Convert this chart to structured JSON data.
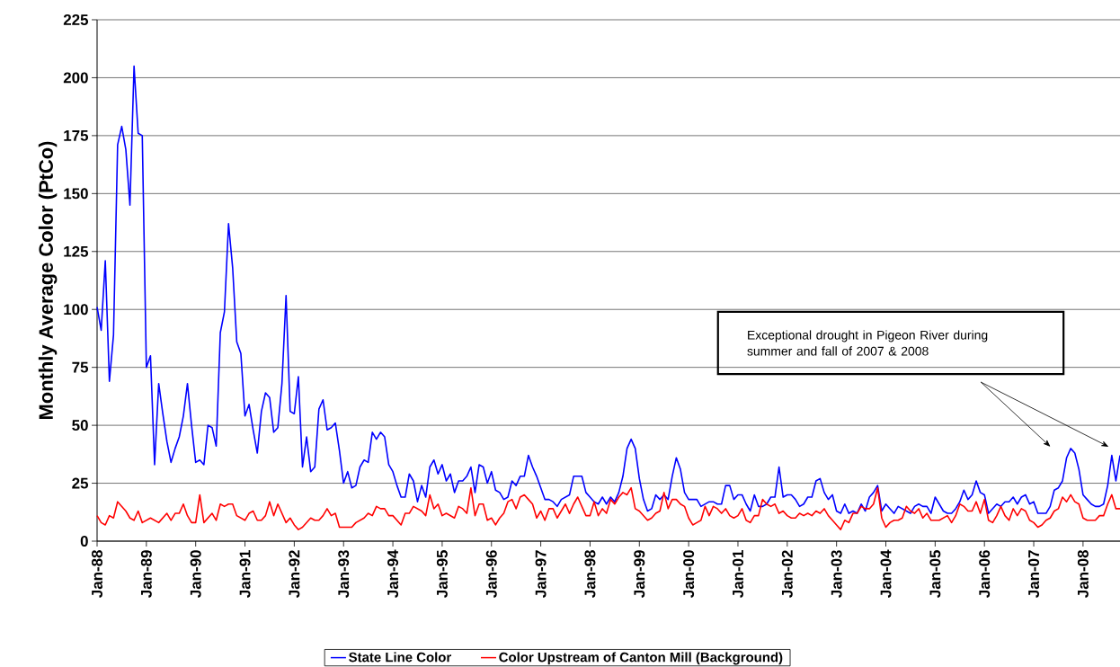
{
  "chart_data": {
    "type": "line",
    "ylabel": "Monthly Average Color (PtCo)",
    "x": [
      "1988-01",
      "1988-02",
      "1988-03",
      "1988-04",
      "1988-05",
      "1988-06",
      "1988-07",
      "1988-08",
      "1988-09",
      "1988-10",
      "1988-11",
      "1988-12",
      "1989-01",
      "1989-02",
      "1989-03",
      "1989-04",
      "1989-05",
      "1989-06",
      "1989-07",
      "1989-08",
      "1989-09",
      "1989-10",
      "1989-11",
      "1989-12",
      "1990-01",
      "1990-02",
      "1990-03",
      "1990-04",
      "1990-05",
      "1990-06",
      "1990-07",
      "1990-08",
      "1990-09",
      "1990-10",
      "1990-11",
      "1990-12",
      "1991-01",
      "1991-02",
      "1991-03",
      "1991-04",
      "1991-05",
      "1991-06",
      "1991-07",
      "1991-08",
      "1991-09",
      "1991-10",
      "1991-11",
      "1991-12",
      "1992-01",
      "1992-02",
      "1992-03",
      "1992-04",
      "1992-05",
      "1992-06",
      "1992-07",
      "1992-08",
      "1992-09",
      "1992-10",
      "1992-11",
      "1992-12",
      "1993-01",
      "1993-02",
      "1993-03",
      "1993-04",
      "1993-05",
      "1993-06",
      "1993-07",
      "1993-08",
      "1993-09",
      "1993-10",
      "1993-11",
      "1993-12",
      "1994-01",
      "1994-02",
      "1994-03",
      "1994-04",
      "1994-05",
      "1994-06",
      "1994-07",
      "1994-08",
      "1994-09",
      "1994-10",
      "1994-11",
      "1994-12",
      "1995-01",
      "1995-02",
      "1995-03",
      "1995-04",
      "1995-05",
      "1995-06",
      "1995-07",
      "1995-08",
      "1995-09",
      "1995-10",
      "1995-11",
      "1995-12",
      "1996-01",
      "1996-02",
      "1996-03",
      "1996-04",
      "1996-05",
      "1996-06",
      "1996-07",
      "1996-08",
      "1996-09",
      "1996-10",
      "1996-11",
      "1996-12",
      "1997-01",
      "1997-02",
      "1997-03",
      "1997-04",
      "1997-05",
      "1997-06",
      "1997-07",
      "1997-08",
      "1997-09",
      "1997-10",
      "1997-11",
      "1997-12",
      "1998-01",
      "1998-02",
      "1998-03",
      "1998-04",
      "1998-05",
      "1998-06",
      "1998-07",
      "1998-08",
      "1998-09",
      "1998-10",
      "1998-11",
      "1998-12",
      "1999-01",
      "1999-02",
      "1999-03",
      "1999-04",
      "1999-05",
      "1999-06",
      "1999-07",
      "1999-08",
      "1999-09",
      "1999-10",
      "1999-11",
      "1999-12",
      "2000-01",
      "2000-02",
      "2000-03",
      "2000-04",
      "2000-05",
      "2000-06",
      "2000-07",
      "2000-08",
      "2000-09",
      "2000-10",
      "2000-11",
      "2000-12",
      "2001-01",
      "2001-02",
      "2001-03",
      "2001-04",
      "2001-05",
      "2001-06",
      "2001-07",
      "2001-08",
      "2001-09",
      "2001-10",
      "2001-11",
      "2001-12",
      "2002-01",
      "2002-02",
      "2002-03",
      "2002-04",
      "2002-05",
      "2002-06",
      "2002-07",
      "2002-08",
      "2002-09",
      "2002-10",
      "2002-11",
      "2002-12",
      "2003-01",
      "2003-02",
      "2003-03",
      "2003-04",
      "2003-05",
      "2003-06",
      "2003-07",
      "2003-08",
      "2003-09",
      "2003-10",
      "2003-11",
      "2003-12",
      "2004-01",
      "2004-02",
      "2004-03",
      "2004-04",
      "2004-05",
      "2004-06",
      "2004-07",
      "2004-08",
      "2004-09",
      "2004-10",
      "2004-11",
      "2004-12",
      "2005-01",
      "2005-02",
      "2005-03",
      "2005-04",
      "2005-05",
      "2005-06",
      "2005-07",
      "2005-08",
      "2005-09",
      "2005-10",
      "2005-11",
      "2005-12",
      "2006-01",
      "2006-02",
      "2006-03",
      "2006-04",
      "2006-05",
      "2006-06",
      "2006-07",
      "2006-08",
      "2006-09",
      "2006-10",
      "2006-11",
      "2006-12",
      "2007-01",
      "2007-02",
      "2007-03",
      "2007-04",
      "2007-05",
      "2007-06",
      "2007-07",
      "2007-08",
      "2007-09",
      "2007-10",
      "2007-11",
      "2007-12",
      "2008-01",
      "2008-02",
      "2008-03",
      "2008-04",
      "2008-05",
      "2008-06",
      "2008-07",
      "2008-08",
      "2008-09",
      "2008-10"
    ],
    "series": [
      {
        "name": "State Line Color",
        "color": "#0000ff",
        "values": [
          101,
          91,
          121,
          69,
          89,
          171,
          179,
          169,
          145,
          205,
          176,
          175,
          75,
          80,
          33,
          68,
          55,
          43,
          34,
          40,
          45,
          54,
          68,
          50,
          34,
          35,
          33,
          50,
          49,
          41,
          90,
          99,
          137,
          118,
          86,
          81,
          54,
          59,
          48,
          38,
          56,
          64,
          62,
          47,
          49,
          68,
          106,
          56,
          55,
          71,
          32,
          45,
          30,
          32,
          57,
          61,
          48,
          49,
          51,
          39,
          25,
          30,
          23,
          24,
          32,
          35,
          34,
          47,
          44,
          47,
          45,
          33,
          30,
          24,
          19,
          19,
          29,
          26,
          17,
          24,
          19,
          32,
          35,
          29,
          33,
          26,
          29,
          21,
          26,
          26,
          28,
          32,
          21,
          33,
          32,
          25,
          30,
          22,
          21,
          18,
          19,
          26,
          24,
          28,
          28,
          37,
          32,
          28,
          23,
          18,
          18,
          17,
          15,
          18,
          19,
          20,
          28,
          28,
          28,
          21,
          19,
          17,
          16,
          19,
          16,
          19,
          17,
          21,
          28,
          40,
          44,
          40,
          27,
          18,
          13,
          14,
          20,
          18,
          20,
          18,
          28,
          36,
          31,
          21,
          18,
          18,
          18,
          15,
          16,
          17,
          17,
          16,
          16,
          24,
          24,
          18,
          20,
          20,
          16,
          13,
          20,
          15,
          15,
          16,
          19,
          19,
          32,
          19,
          20,
          20,
          18,
          15,
          16,
          19,
          19,
          26,
          27,
          21,
          18,
          20,
          13,
          12,
          16,
          12,
          13,
          12,
          16,
          13,
          19,
          21,
          24,
          13,
          16,
          14,
          12,
          15,
          14,
          13,
          12,
          15,
          16,
          15,
          15,
          12,
          19,
          16,
          13,
          12,
          12,
          14,
          17,
          22,
          18,
          20,
          26,
          21,
          20,
          12,
          14,
          16,
          15,
          17,
          17,
          19,
          16,
          19,
          20,
          16,
          17,
          12,
          12,
          12,
          15,
          22,
          23,
          26,
          36,
          40,
          38,
          31,
          20,
          18,
          16,
          15,
          15,
          16,
          24,
          37,
          26,
          37
        ]
      },
      {
        "name": "Color Upstream of Canton Mill (Background)",
        "color": "#ff0000",
        "values": [
          11,
          8,
          7,
          11,
          10,
          17,
          15,
          13,
          10,
          9,
          13,
          8,
          9,
          10,
          9,
          8,
          10,
          12,
          9,
          12,
          12,
          16,
          11,
          8,
          8,
          20,
          8,
          10,
          12,
          9,
          16,
          15,
          16,
          16,
          11,
          10,
          9,
          12,
          13,
          9,
          9,
          11,
          17,
          11,
          16,
          12,
          8,
          10,
          7,
          5,
          6,
          8,
          10,
          9,
          9,
          11,
          14,
          11,
          12,
          6,
          6,
          6,
          6,
          8,
          9,
          10,
          12,
          11,
          15,
          14,
          14,
          11,
          11,
          9,
          7,
          12,
          12,
          15,
          14,
          13,
          11,
          20,
          14,
          16,
          11,
          12,
          11,
          10,
          15,
          14,
          12,
          23,
          11,
          16,
          16,
          9,
          10,
          7,
          10,
          12,
          17,
          18,
          14,
          19,
          20,
          18,
          16,
          10,
          13,
          9,
          14,
          14,
          10,
          13,
          16,
          12,
          16,
          19,
          15,
          11,
          11,
          17,
          11,
          14,
          12,
          18,
          16,
          19,
          21,
          20,
          23,
          14,
          13,
          11,
          9,
          10,
          12,
          13,
          21,
          14,
          18,
          18,
          16,
          15,
          10,
          7,
          8,
          9,
          15,
          11,
          15,
          14,
          12,
          14,
          11,
          10,
          11,
          14,
          9,
          8,
          11,
          11,
          18,
          16,
          15,
          16,
          12,
          13,
          11,
          10,
          10,
          12,
          11,
          12,
          11,
          13,
          12,
          14,
          11,
          9,
          7,
          5,
          9,
          8,
          12,
          12,
          15,
          14,
          14,
          16,
          23,
          10,
          6,
          8,
          9,
          9,
          10,
          15,
          13,
          12,
          14,
          10,
          12,
          9,
          9,
          9,
          10,
          11,
          8,
          11,
          16,
          15,
          13,
          13,
          17,
          12,
          18,
          9,
          8,
          11,
          15,
          11,
          9,
          14,
          11,
          14,
          13,
          9,
          8,
          6,
          7,
          9,
          10,
          13,
          14,
          19,
          17,
          20,
          17,
          16,
          10,
          9,
          9,
          9,
          11,
          11,
          16,
          20,
          14,
          14
        ]
      }
    ],
    "xlim": [
      "1988-01",
      "2008-10"
    ],
    "xticks": [
      {
        "value": "1988-01",
        "label": "Jan-88"
      },
      {
        "value": "1989-01",
        "label": "Jan-89"
      },
      {
        "value": "1990-01",
        "label": "Jan-90"
      },
      {
        "value": "1991-01",
        "label": "Jan-91"
      },
      {
        "value": "1992-01",
        "label": "Jan-92"
      },
      {
        "value": "1993-01",
        "label": "Jan-93"
      },
      {
        "value": "1994-01",
        "label": "Jan-94"
      },
      {
        "value": "1995-01",
        "label": "Jan-95"
      },
      {
        "value": "1996-01",
        "label": "Jan-96"
      },
      {
        "value": "1997-01",
        "label": "Jan-97"
      },
      {
        "value": "1998-01",
        "label": "Jan-98"
      },
      {
        "value": "1999-01",
        "label": "Jan-99"
      },
      {
        "value": "2000-01",
        "label": "Jan-00"
      },
      {
        "value": "2001-01",
        "label": "Jan-01"
      },
      {
        "value": "2002-01",
        "label": "Jan-02"
      },
      {
        "value": "2003-01",
        "label": "Jan-03"
      },
      {
        "value": "2004-01",
        "label": "Jan-04"
      },
      {
        "value": "2005-01",
        "label": "Jan-05"
      },
      {
        "value": "2006-01",
        "label": "Jan-06"
      },
      {
        "value": "2007-01",
        "label": "Jan-07"
      },
      {
        "value": "2008-01",
        "label": "Jan-08"
      }
    ],
    "ylim": [
      0,
      225
    ],
    "yticks": [
      0,
      25,
      50,
      75,
      100,
      125,
      150,
      175,
      200,
      225
    ],
    "grid": "y",
    "legend": "bottom",
    "marker": "none",
    "line_style": "solid",
    "annotations": [
      "Exceptional drought in Pigeon River during summer and fall of 2007 & 2008"
    ]
  }
}
